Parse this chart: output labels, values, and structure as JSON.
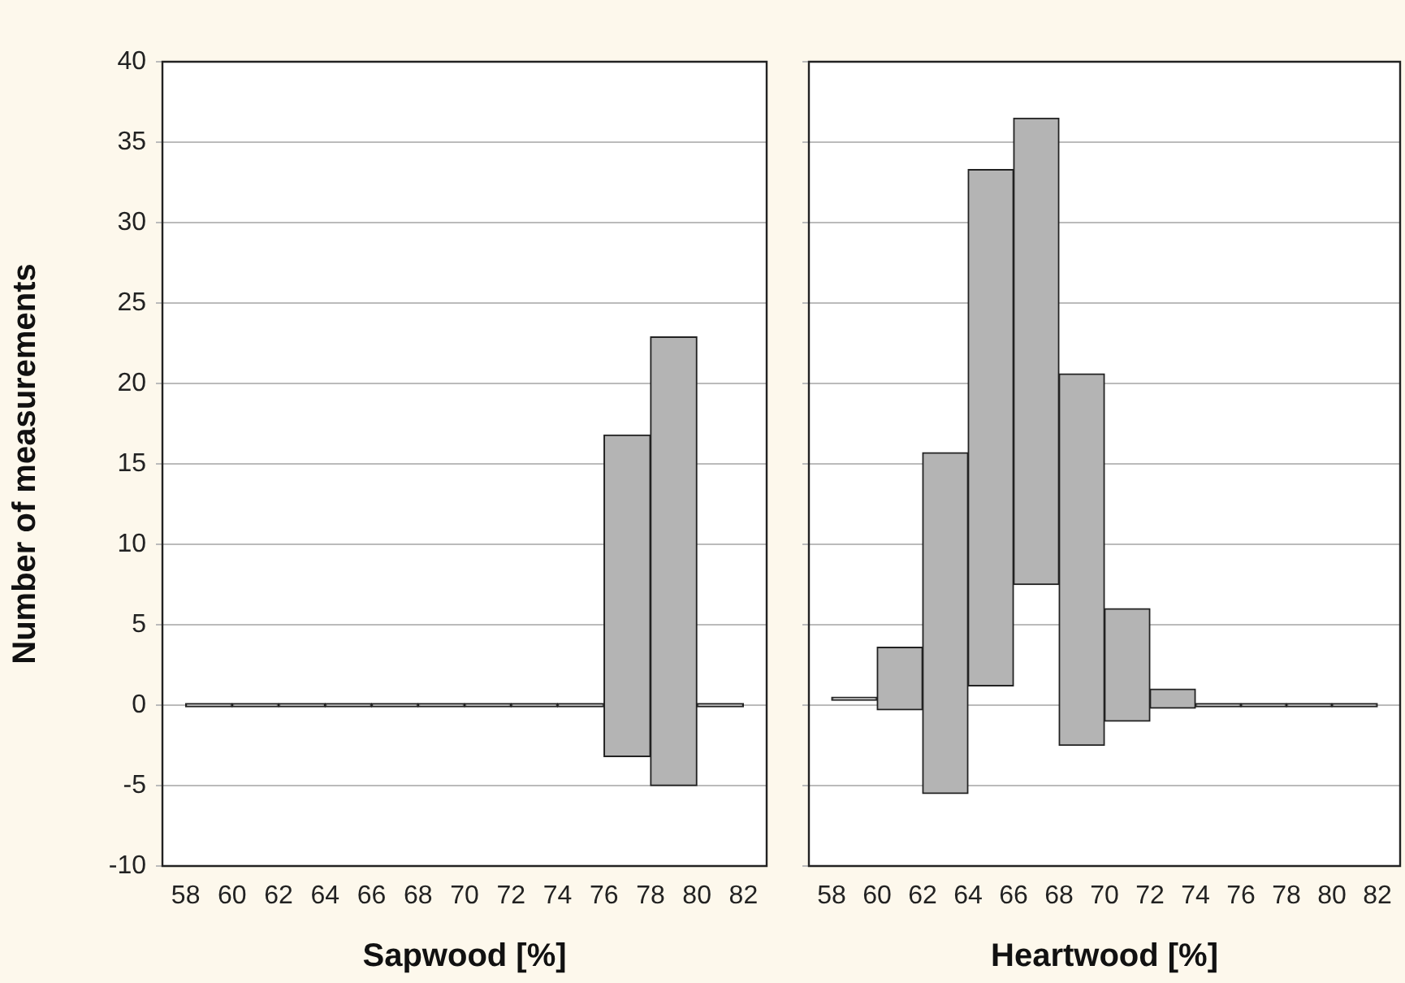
{
  "chart_data": [
    {
      "type": "bar",
      "xlabel": "Sapwood [%]",
      "ylabel": "Number of measurements",
      "x": [
        59,
        61,
        63,
        65,
        67,
        69,
        71,
        73,
        75,
        77,
        79,
        81
      ],
      "values": [
        0,
        0,
        0,
        0,
        0,
        0,
        0,
        0,
        0,
        20.0,
        27.9,
        0
      ],
      "base": [
        0,
        0,
        0,
        0,
        0,
        0,
        0,
        0,
        0,
        -3.2,
        -5.0,
        0
      ],
      "color": "#b4b4b4",
      "xlim": [
        57,
        83
      ],
      "xticks": [
        58,
        60,
        62,
        64,
        66,
        68,
        70,
        72,
        74,
        76,
        78,
        80,
        82
      ],
      "ylim": [
        -10,
        40
      ],
      "yticks": [
        -10,
        -5,
        0,
        5,
        10,
        15,
        20,
        25,
        30,
        35,
        40
      ],
      "grid": "y"
    },
    {
      "type": "bar",
      "xlabel": "Heartwood [%]",
      "x": [
        59,
        61,
        63,
        65,
        67,
        69,
        71,
        73,
        75,
        77,
        79,
        81
      ],
      "values": [
        0,
        3.9,
        21.2,
        32.1,
        29.0,
        23.1,
        7.0,
        1.2,
        0.1,
        0,
        0,
        0
      ],
      "base": [
        0.5,
        -0.3,
        -5.5,
        1.2,
        7.5,
        -2.5,
        -1.0,
        -0.2,
        0,
        0,
        0,
        0
      ],
      "color": "#b4b4b4",
      "xlim": [
        57,
        83
      ],
      "xticks": [
        58,
        60,
        62,
        64,
        66,
        68,
        70,
        72,
        74,
        76,
        78,
        80,
        82
      ],
      "ylim": [
        -10,
        40
      ],
      "yticks": [
        -10,
        -5,
        0,
        5,
        10,
        15,
        20,
        25,
        30,
        35,
        40
      ],
      "grid": "y",
      "tick_labels": "x"
    }
  ]
}
